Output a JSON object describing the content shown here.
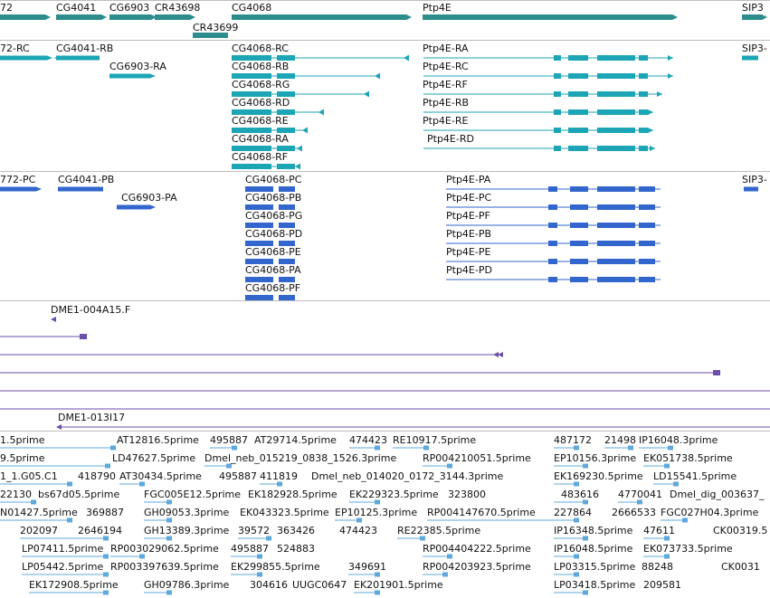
{
  "colors": {
    "gene": "#2d8d8d",
    "transcript": "#1ba5b5",
    "protein": "#3366cc",
    "cdna": "#6a4fa8",
    "est": "#5fa8dc",
    "divider": "#bdbdbd"
  },
  "gene_track": {
    "labels": [
      "72",
      "CG4041",
      "CG6903",
      "CR43698",
      "CR43699",
      "CG4068",
      "Ptp4E",
      "SIP3"
    ]
  },
  "transcript_track": {
    "labels": [
      "72-RC",
      "CG4041-RB",
      "CG6903-RA",
      "CG4068-RC",
      "CG4068-RB",
      "CG4068-RG",
      "CG4068-RD",
      "CG4068-RE",
      "CG4068-RA",
      "CG4068-RF",
      "Ptp4E-RA",
      "Ptp4E-RC",
      "Ptp4E-RF",
      "Ptp4E-RB",
      "Ptp4E-RE",
      "Ptp4E-RD",
      "SIP3-"
    ]
  },
  "protein_track": {
    "labels": [
      "772-PC",
      "CG4041-PB",
      "CG6903-PA",
      "CG4068-PC",
      "CG4068-PB",
      "CG4068-PG",
      "CG4068-PD",
      "CG4068-PE",
      "CG4068-PA",
      "CG4068-PF",
      "Ptp4E-PA",
      "Ptp4E-PC",
      "Ptp4E-PF",
      "Ptp4E-PB",
      "Ptp4E-PE",
      "Ptp4E-PD",
      "SIP3-"
    ]
  },
  "cdna_track": {
    "labels": [
      "DME1-004A15.F",
      "DME1-013I17"
    ]
  },
  "est_track": {
    "labels": [
      "1.5prime",
      "AT12816.5prime",
      "495887",
      "AT29714.5prime",
      "474423",
      "RE10917.5prime",
      "487172",
      "21498",
      "IP16048.3prime",
      "9.5prime",
      "LD47627.5prime",
      "Dmel_neb_015219_0838_1526.3prime",
      "RP004210051.5prime",
      "EP10156.3prime",
      "EK051738.5prime",
      "1_1.G05.C1",
      "418790",
      "AT30434.5prime",
      "495887",
      "411819",
      "Dmel_neb_014020_0172_3144.3prime",
      "EK169230.5prime",
      "LD15541.5prime",
      "22130",
      "bs67d05.5prime",
      "FGC005E12.5prime",
      "EK182928.5prime",
      "EK229323.5prime",
      "323800",
      "483616",
      "4770041",
      "Dmel_dig_003637_",
      "N01427.5prime",
      "369887",
      "GH09053.3prime",
      "EK043323.5prime",
      "EP10125.3prime",
      "RP004147670.5prime",
      "227864",
      "2666533",
      "FGC027H04.3prime",
      "202097",
      "2646194",
      "GH13389.3prime",
      "39572",
      "363426",
      "474423",
      "RE22385.5prime",
      "IP16348.5prime",
      "47611",
      "CK00319.5",
      "LP07411.5prime",
      "RP003029062.5prime",
      "495887",
      "524883",
      "RP004404222.5prime",
      "IP16048.5prime",
      "EK073733.5prime",
      "LP05442.5prime",
      "RP003397639.5prime",
      "EK299855.5prime",
      "349691",
      "RP004203923.5prime",
      "LP03315.5prime",
      "88248",
      "CK0031",
      "EK172908.5prime",
      "GH09786.3prime",
      "304616",
      "UUGC0647",
      "EK201901.5prime",
      "LP03418.5prime",
      "209581"
    ]
  }
}
